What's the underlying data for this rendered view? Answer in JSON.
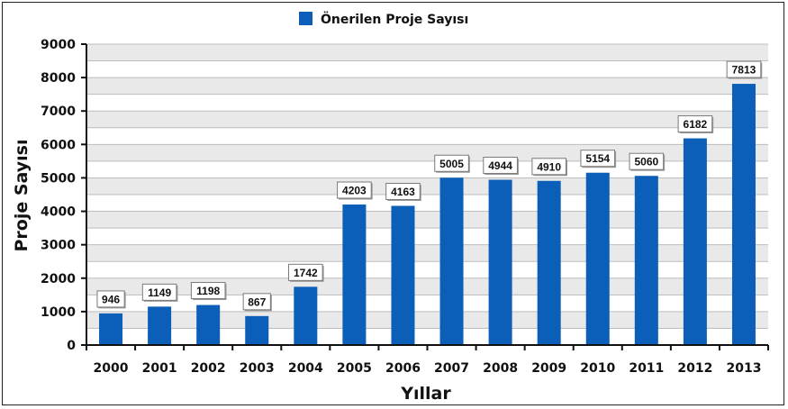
{
  "chart_data": {
    "type": "bar",
    "categories": [
      "2000",
      "2001",
      "2002",
      "2003",
      "2004",
      "2005",
      "2006",
      "2007",
      "2008",
      "2009",
      "2010",
      "2011",
      "2012",
      "2013"
    ],
    "series": [
      {
        "name": "Önerilen Proje Sayısı",
        "values": [
          946,
          1149,
          1198,
          867,
          1742,
          4203,
          4163,
          5005,
          4944,
          4910,
          5154,
          5060,
          6182,
          7813
        ]
      }
    ],
    "xlabel": "Yıllar",
    "ylabel": "Proje Sayısı",
    "ylim": [
      0,
      9000
    ],
    "yticks": [
      0,
      1000,
      2000,
      3000,
      4000,
      5000,
      6000,
      7000,
      8000,
      9000
    ],
    "grid": true,
    "legend_position": "top-center",
    "colors": {
      "bar": "#0b5fb8",
      "band": "#e9e9e9",
      "grid": "#bdbdbd",
      "axis": "#111111"
    }
  }
}
